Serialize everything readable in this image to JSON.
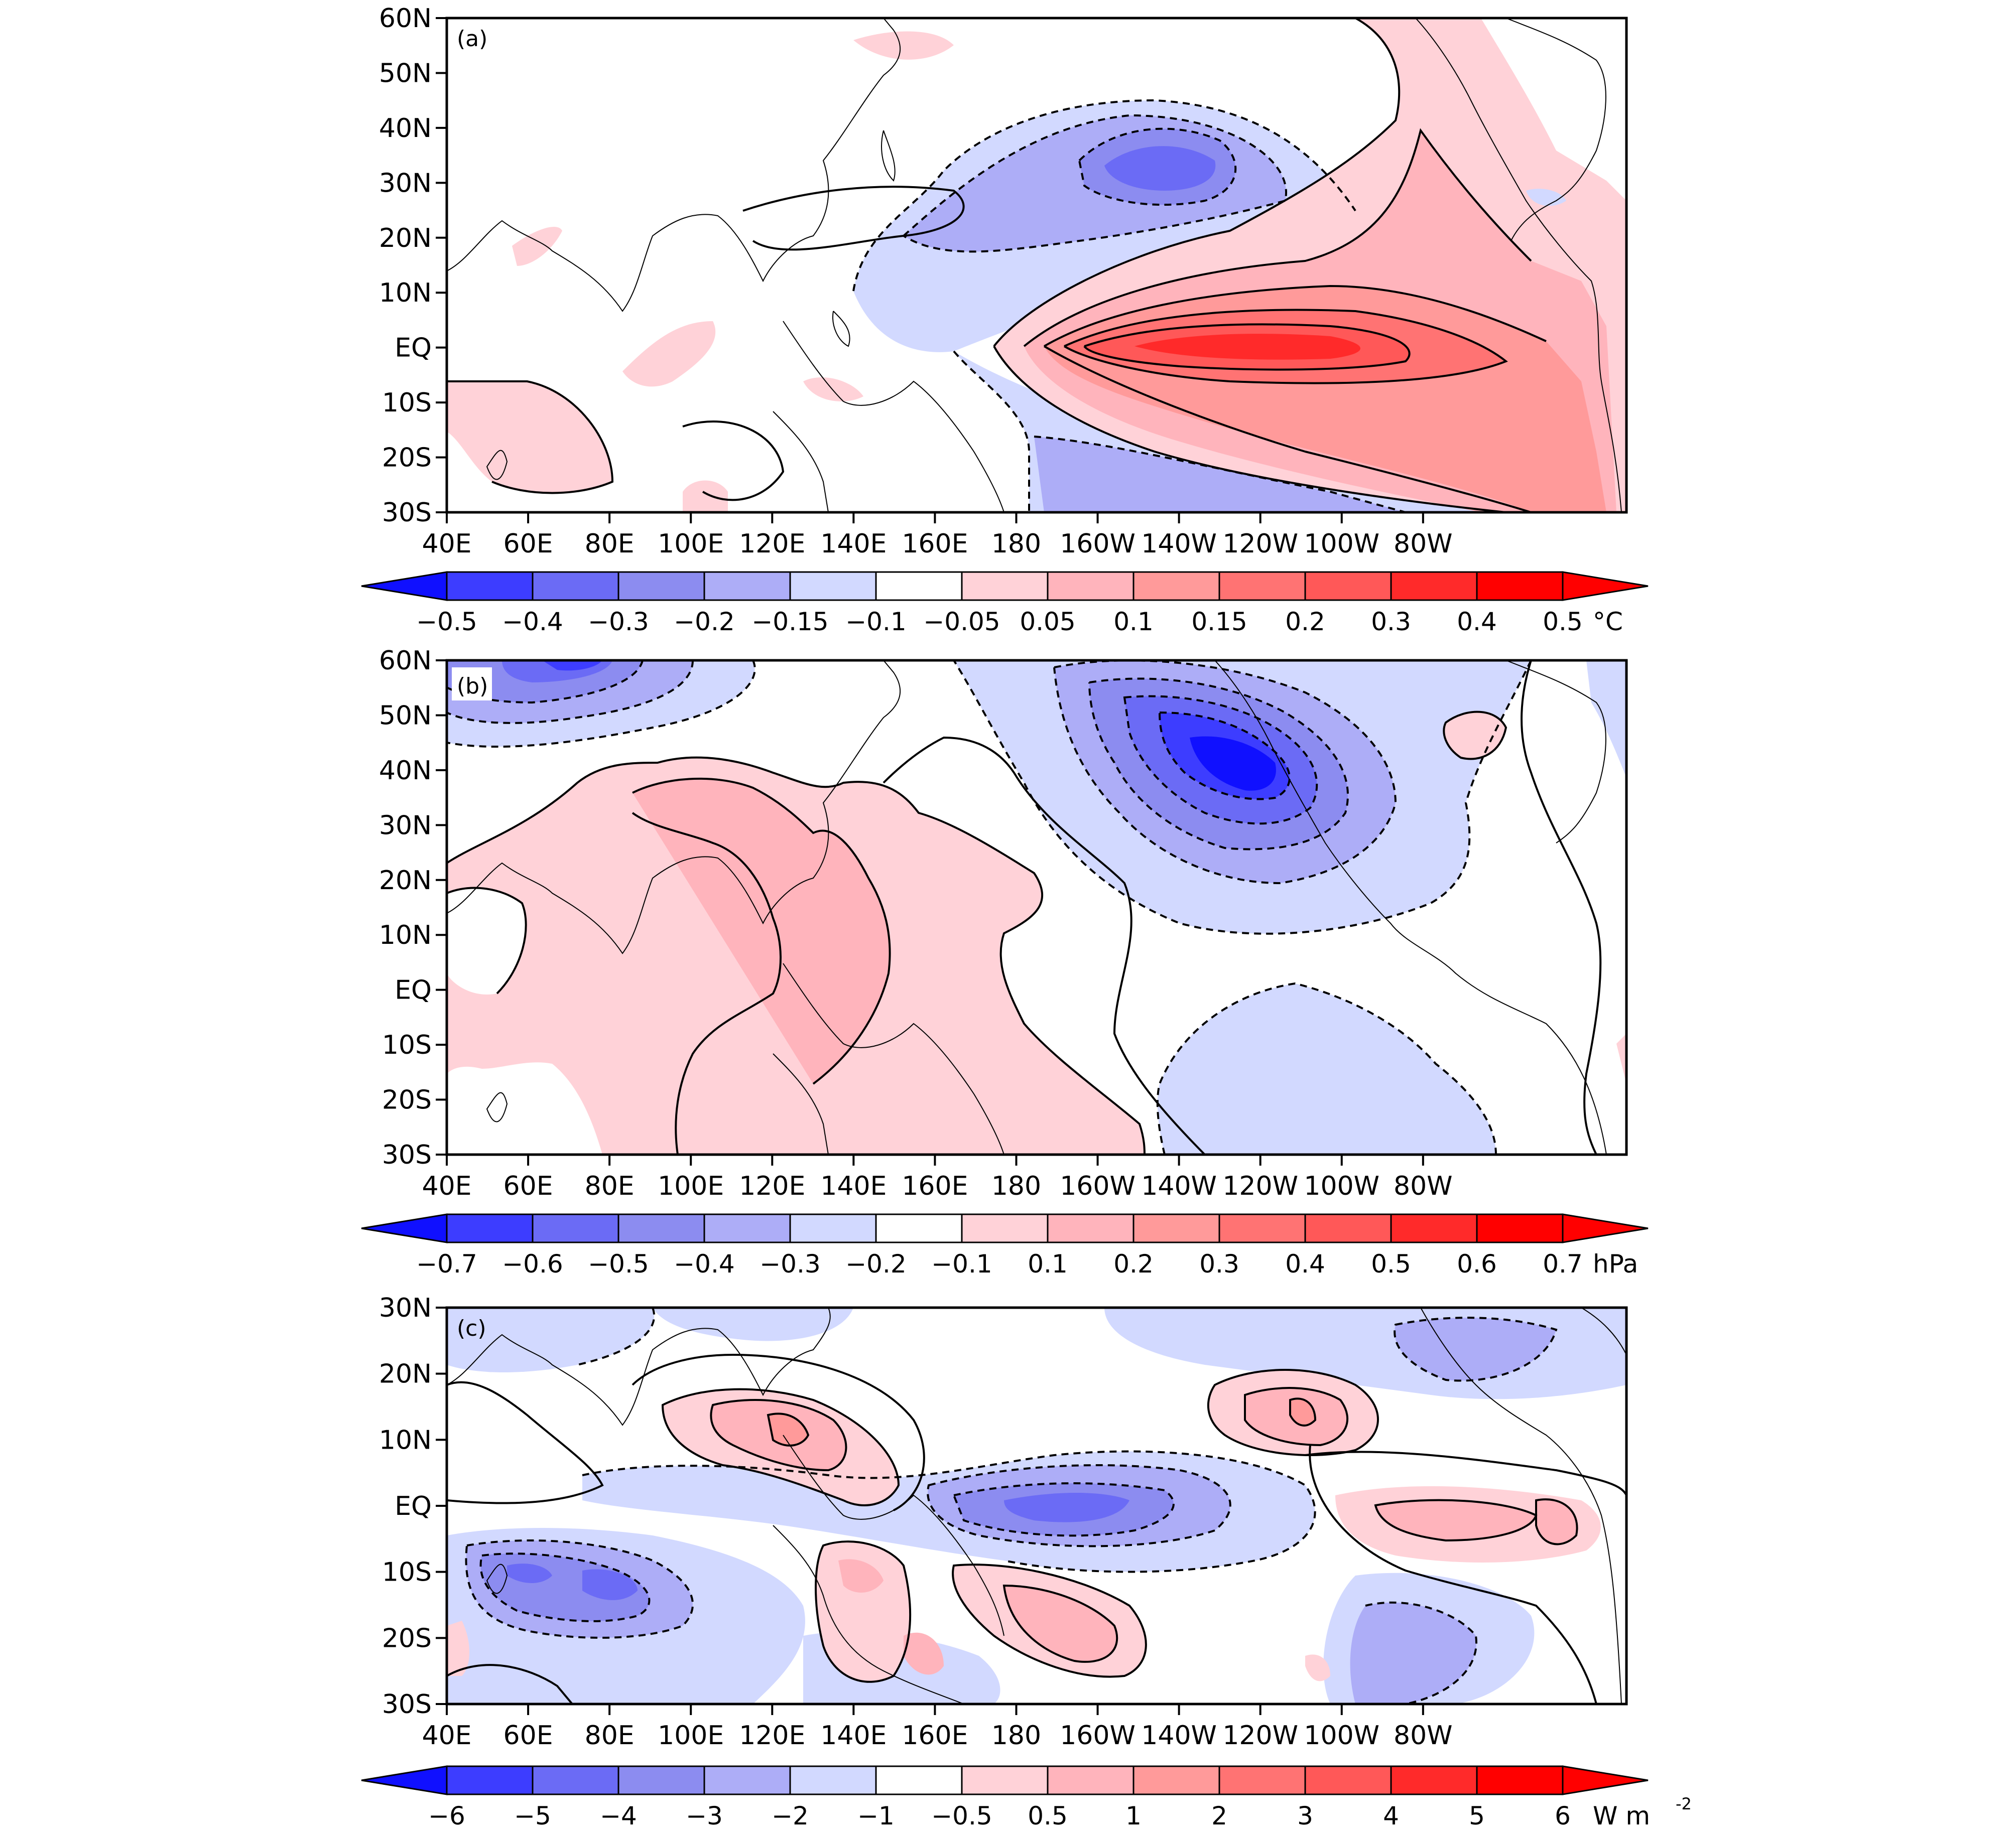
{
  "panels": [
    {
      "id": "a",
      "label": "(a)",
      "lat_ticks": [
        "60N",
        "50N",
        "40N",
        "30N",
        "20N",
        "10N",
        "EQ",
        "10S",
        "20S",
        "30S"
      ],
      "lon_ticks": [
        "40E",
        "60E",
        "80E",
        "100E",
        "120E",
        "140E",
        "160E",
        "180",
        "160W",
        "140W",
        "120W",
        "100W",
        "80W"
      ],
      "colorbar": {
        "labels": [
          "−0.5",
          "−0.4",
          "−0.3",
          "−0.2",
          "−0.15",
          "−0.1",
          "−0.05",
          "0.05",
          "0.1",
          "0.15",
          "0.2",
          "0.3",
          "0.4",
          "0.5"
        ],
        "unit": "°C"
      }
    },
    {
      "id": "b",
      "label": "(b)",
      "lat_ticks": [
        "60N",
        "50N",
        "40N",
        "30N",
        "20N",
        "10N",
        "EQ",
        "10S",
        "20S",
        "30S"
      ],
      "lon_ticks": [
        "40E",
        "60E",
        "80E",
        "100E",
        "120E",
        "140E",
        "160E",
        "180",
        "160W",
        "140W",
        "120W",
        "100W",
        "80W"
      ],
      "colorbar": {
        "labels": [
          "−0.7",
          "−0.6",
          "−0.5",
          "−0.4",
          "−0.3",
          "−0.2",
          "−0.1",
          "0.1",
          "0.2",
          "0.3",
          "0.4",
          "0.5",
          "0.6",
          "0.7"
        ],
        "unit": "hPa"
      }
    },
    {
      "id": "c",
      "label": "(c)",
      "lat_ticks": [
        "30N",
        "20N",
        "10N",
        "EQ",
        "10S",
        "20S",
        "30S"
      ],
      "lon_ticks": [
        "40E",
        "60E",
        "80E",
        "100E",
        "120E",
        "140E",
        "160E",
        "180",
        "160W",
        "140W",
        "120W",
        "100W",
        "80W"
      ],
      "colorbar": {
        "labels": [
          "−6",
          "−5",
          "−4",
          "−3",
          "−2",
          "−1",
          "−0.5",
          "0.5",
          "1",
          "2",
          "3",
          "4",
          "5",
          "6"
        ],
        "unit": "W m",
        "unit_sup": "-2"
      }
    }
  ],
  "palette": [
    "#1010ff",
    "#3d3dff",
    "#6b6bf5",
    "#8c8cf0",
    "#adadf7",
    "#d2d9ff",
    "#ffffff",
    "#ffd2d8",
    "#ffb4bc",
    "#ff9a9a",
    "#ff7373",
    "#ff5858",
    "#ff2a2a",
    "#ff0000"
  ]
}
